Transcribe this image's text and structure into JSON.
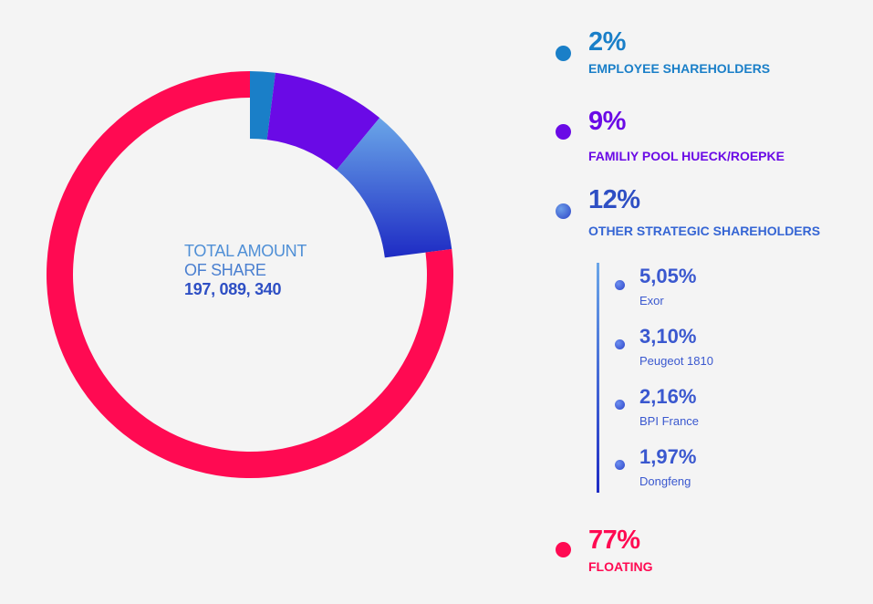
{
  "chart_data": {
    "type": "pie",
    "style": "donut",
    "center_label": {
      "line1": "TOTAL AMOUNT",
      "line2": "OF SHARE",
      "value": "197, 089, 340"
    },
    "slices": [
      {
        "label": "EMPLOYEE SHAREHOLDERS",
        "percent_label": "2%",
        "value": 2,
        "color": "#1a7fc8"
      },
      {
        "label": "FAMILIY POOL HUECK/ROEPKE",
        "percent_label": "9%",
        "value": 9,
        "color": "#6a0ae6"
      },
      {
        "label": "OTHER STRATEGIC SHAREHOLDERS",
        "percent_label": "12%",
        "value": 12,
        "color_top": "#6aa6e8",
        "color_bottom": "#1e2bc4"
      },
      {
        "label": "FLOATING",
        "percent_label": "77%",
        "value": 77,
        "color": "#ff0a52"
      }
    ],
    "breakdown": {
      "parent": "OTHER STRATEGIC SHAREHOLDERS",
      "items": [
        {
          "label": "Exor",
          "percent_label": "5,05%",
          "value": 5.05
        },
        {
          "label": "Peugeot 1810",
          "percent_label": "3,10%",
          "value": 3.1
        },
        {
          "label": "BPI France",
          "percent_label": "2,16%",
          "value": 2.16
        },
        {
          "label": "Dongfeng",
          "percent_label": "1,97%",
          "value": 1.97
        }
      ]
    }
  }
}
